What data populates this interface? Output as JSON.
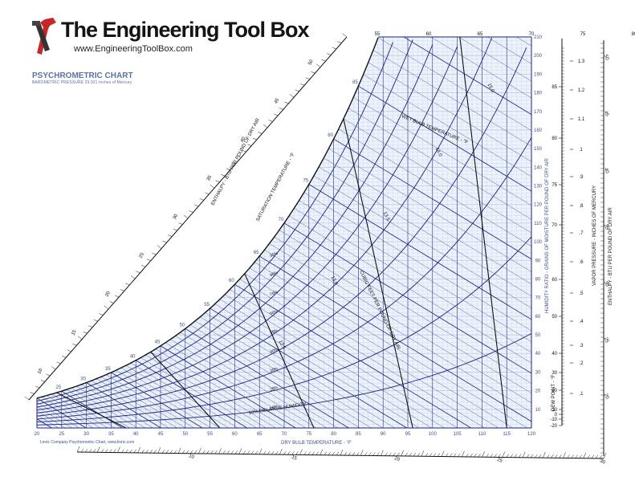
{
  "logo": {
    "title": "The Engineering Tool Box",
    "url": "www.EngineeringToolBox.com",
    "icon": "wrench-hammer-icon"
  },
  "chart_data": {
    "type": "line",
    "title": "PSYCHROMETRIC CHART",
    "subtitle": "BAROMETRIC PRESSURE 29.921 Inches of Mercury",
    "credit": "Linric Company Psychrometric Chart, www.linric.com",
    "xlabel": "DRY BULB TEMPERATURE - °F",
    "ylabel_right": "HUMIDITY RATIO - GRAINS OF MOISTURE PER POUND OF DRY AIR",
    "xlim": [
      20,
      120
    ],
    "ylim": [
      0,
      210
    ],
    "x_ticks": [
      20,
      25,
      30,
      35,
      40,
      45,
      50,
      55,
      60,
      65,
      70,
      75,
      80,
      85,
      90,
      95,
      100,
      105,
      110,
      115,
      120
    ],
    "y_ticks": [
      10,
      20,
      30,
      40,
      50,
      60,
      70,
      80,
      90,
      100,
      110,
      120,
      130,
      140,
      150,
      160,
      170,
      180,
      190,
      200,
      210
    ],
    "grid": true,
    "saturation_label": "SATURATION TEMPERATURE - °F",
    "saturation_ticks": [
      25,
      30,
      35,
      40,
      45,
      50,
      55,
      60,
      65,
      70,
      75,
      80,
      85
    ],
    "enthalpy_label_left": "ENTHALPY - BTU PER POUND OF DRY AIR",
    "enthalpy_ticks_left": [
      10,
      15,
      20,
      25,
      30,
      35,
      40,
      45,
      50
    ],
    "enthalpy_ticks_bottom": [
      10,
      15,
      20,
      25
    ],
    "wet_bulb_label": "WET BULB TEMPERATURE - °F",
    "wet_bulb_values": [
      55,
      60,
      65,
      70,
      75,
      80
    ],
    "volume_label": "CUBIC FEET PER POUND OF DRY AIR",
    "volume_values": [
      12.5,
      13.0,
      13.5,
      14.0,
      15.0
    ],
    "rh_label": "10% RELATIVE HUMIDITY",
    "rh_values": [
      10,
      20,
      30,
      40,
      50,
      60,
      70,
      80,
      90
    ],
    "dew_point_label": "DEW POINT - °F",
    "dew_point_ticks": [
      -20,
      -10,
      0,
      10,
      20,
      30,
      40,
      50,
      60,
      70,
      75,
      80,
      85
    ],
    "vapor_pressure_label": "VAPOR PRESSURE - INCHES OF MERCURY",
    "vapor_pressure_ticks": [
      ".1",
      ".2",
      ".3",
      ".4",
      ".5",
      ".6",
      ".7",
      ".8",
      ".9",
      "1",
      "1.1",
      "1.2",
      "1.3"
    ],
    "enthalpy_label_right": "ENTHALPY - BTU PER POUND OF DRY AIR",
    "enthalpy_ticks_right": [
      20,
      25,
      30,
      35,
      40,
      45,
      50,
      55,
      60
    ],
    "enthalpy_ticks_bottom_scale": [
      10,
      15,
      20,
      25,
      30
    ],
    "colors": {
      "lines": "#1a237e",
      "grid": "#b9cce6",
      "text": "#3b4f86",
      "black": "#111111"
    }
  }
}
